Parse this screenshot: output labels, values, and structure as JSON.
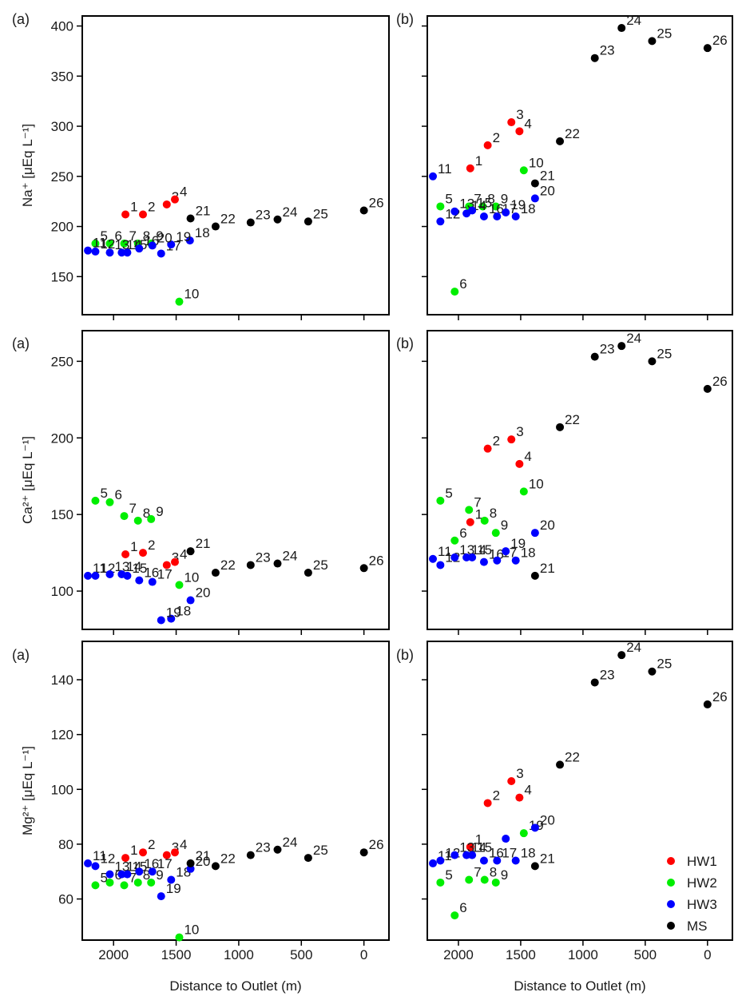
{
  "colors": {
    "HW1": "#ff0000",
    "HW2": "#00ee00",
    "HW3": "#0000ff",
    "MS": "#000000"
  },
  "legend": {
    "entries": [
      {
        "key": "HW1",
        "label": "HW1"
      },
      {
        "key": "HW2",
        "label": "HW2"
      },
      {
        "key": "HW3",
        "label": "HW3"
      },
      {
        "key": "MS",
        "label": "MS"
      }
    ],
    "placement": "bottom-right"
  },
  "x_axis": {
    "label": "Distance to Outlet (m)",
    "ticks": [
      2000,
      1500,
      1000,
      500,
      0
    ],
    "range": [
      2250,
      -200
    ]
  },
  "chart_data": [
    {
      "type": "scatter",
      "row": 0,
      "col": 0,
      "panel_tag": "(a)",
      "ylabel": "Na⁺ [μEq L⁻¹]",
      "ylim": [
        112,
        410
      ],
      "yticks": [
        150,
        200,
        250,
        300,
        350,
        400
      ],
      "points": [
        {
          "id": "1",
          "x": 1905,
          "y": 212,
          "g": "HW1"
        },
        {
          "id": "2",
          "x": 1765,
          "y": 212,
          "g": "HW1"
        },
        {
          "id": "3",
          "x": 1575,
          "y": 222,
          "g": "HW1"
        },
        {
          "id": "4",
          "x": 1510,
          "y": 227,
          "g": "HW1"
        },
        {
          "id": "5",
          "x": 2145,
          "y": 183,
          "g": "HW2"
        },
        {
          "id": "6",
          "x": 2030,
          "y": 183,
          "g": "HW2"
        },
        {
          "id": "7",
          "x": 1915,
          "y": 183,
          "g": "HW2"
        },
        {
          "id": "8",
          "x": 1805,
          "y": 183,
          "g": "HW2"
        },
        {
          "id": "9",
          "x": 1700,
          "y": 183,
          "g": "HW2"
        },
        {
          "id": "10",
          "x": 1475,
          "y": 125,
          "g": "HW2"
        },
        {
          "id": "11",
          "x": 2205,
          "y": 176,
          "g": "HW3"
        },
        {
          "id": "12",
          "x": 2145,
          "y": 175,
          "g": "HW3"
        },
        {
          "id": "13",
          "x": 2030,
          "y": 174,
          "g": "HW3"
        },
        {
          "id": "14",
          "x": 1935,
          "y": 174,
          "g": "HW3"
        },
        {
          "id": "15",
          "x": 1890,
          "y": 174,
          "g": "HW3"
        },
        {
          "id": "16",
          "x": 1795,
          "y": 178,
          "g": "HW3"
        },
        {
          "id": "17",
          "x": 1620,
          "y": 173,
          "g": "HW3"
        },
        {
          "id": "18",
          "x": 1390,
          "y": 186,
          "g": "HW3"
        },
        {
          "id": "19",
          "x": 1540,
          "y": 182,
          "g": "HW3"
        },
        {
          "id": "20",
          "x": 1690,
          "y": 181,
          "g": "HW3"
        },
        {
          "id": "21",
          "x": 1385,
          "y": 208,
          "g": "MS"
        },
        {
          "id": "22",
          "x": 1185,
          "y": 200,
          "g": "MS"
        },
        {
          "id": "23",
          "x": 905,
          "y": 204,
          "g": "MS"
        },
        {
          "id": "24",
          "x": 690,
          "y": 207,
          "g": "MS"
        },
        {
          "id": "25",
          "x": 445,
          "y": 205,
          "g": "MS"
        },
        {
          "id": "26",
          "x": 0,
          "y": 216,
          "g": "MS"
        }
      ]
    },
    {
      "type": "scatter",
      "row": 0,
      "col": 1,
      "panel_tag": "(b)",
      "ylabel": "",
      "ylim": [
        112,
        410
      ],
      "yticks": [
        150,
        200,
        250,
        300,
        350,
        400
      ],
      "points": [
        {
          "id": "1",
          "x": 1905,
          "y": 258,
          "g": "HW1"
        },
        {
          "id": "2",
          "x": 1765,
          "y": 281,
          "g": "HW1"
        },
        {
          "id": "3",
          "x": 1575,
          "y": 304,
          "g": "HW1"
        },
        {
          "id": "4",
          "x": 1510,
          "y": 295,
          "g": "HW1"
        },
        {
          "id": "5",
          "x": 2145,
          "y": 220,
          "g": "HW2"
        },
        {
          "id": "6",
          "x": 2030,
          "y": 135,
          "g": "HW2"
        },
        {
          "id": "7",
          "x": 1915,
          "y": 220,
          "g": "HW2"
        },
        {
          "id": "8",
          "x": 1805,
          "y": 220,
          "g": "HW2"
        },
        {
          "id": "9",
          "x": 1700,
          "y": 220,
          "g": "HW2"
        },
        {
          "id": "10",
          "x": 1475,
          "y": 256,
          "g": "HW2"
        },
        {
          "id": "11",
          "x": 2205,
          "y": 250,
          "g": "HW3"
        },
        {
          "id": "12",
          "x": 2145,
          "y": 205,
          "g": "HW3"
        },
        {
          "id": "13",
          "x": 2030,
          "y": 215,
          "g": "HW3"
        },
        {
          "id": "14",
          "x": 1935,
          "y": 213,
          "g": "HW3"
        },
        {
          "id": "15",
          "x": 1890,
          "y": 216,
          "g": "HW3"
        },
        {
          "id": "16",
          "x": 1795,
          "y": 210,
          "g": "HW3"
        },
        {
          "id": "17",
          "x": 1690,
          "y": 210,
          "g": "HW3"
        },
        {
          "id": "18",
          "x": 1540,
          "y": 210,
          "g": "HW3"
        },
        {
          "id": "19",
          "x": 1620,
          "y": 214,
          "g": "HW3"
        },
        {
          "id": "20",
          "x": 1385,
          "y": 228,
          "g": "HW3"
        },
        {
          "id": "21",
          "x": 1385,
          "y": 243,
          "g": "MS"
        },
        {
          "id": "22",
          "x": 1185,
          "y": 285,
          "g": "MS"
        },
        {
          "id": "23",
          "x": 905,
          "y": 368,
          "g": "MS"
        },
        {
          "id": "24",
          "x": 690,
          "y": 398,
          "g": "MS"
        },
        {
          "id": "25",
          "x": 445,
          "y": 385,
          "g": "MS"
        },
        {
          "id": "26",
          "x": 0,
          "y": 378,
          "g": "MS"
        }
      ]
    },
    {
      "type": "scatter",
      "row": 1,
      "col": 0,
      "panel_tag": "(a)",
      "ylabel": "Ca²⁺ [μEq L⁻¹]",
      "ylim": [
        75,
        270
      ],
      "yticks": [
        100,
        150,
        200,
        250
      ],
      "points": [
        {
          "id": "1",
          "x": 1905,
          "y": 124,
          "g": "HW1"
        },
        {
          "id": "2",
          "x": 1765,
          "y": 125,
          "g": "HW1"
        },
        {
          "id": "3",
          "x": 1575,
          "y": 117,
          "g": "HW1"
        },
        {
          "id": "4",
          "x": 1510,
          "y": 119,
          "g": "HW1"
        },
        {
          "id": "5",
          "x": 2145,
          "y": 159,
          "g": "HW2"
        },
        {
          "id": "6",
          "x": 2030,
          "y": 158,
          "g": "HW2"
        },
        {
          "id": "7",
          "x": 1915,
          "y": 149,
          "g": "HW2"
        },
        {
          "id": "8",
          "x": 1805,
          "y": 146,
          "g": "HW2"
        },
        {
          "id": "9",
          "x": 1700,
          "y": 147,
          "g": "HW2"
        },
        {
          "id": "10",
          "x": 1475,
          "y": 104,
          "g": "HW2"
        },
        {
          "id": "11",
          "x": 2205,
          "y": 110,
          "g": "HW3"
        },
        {
          "id": "12",
          "x": 2145,
          "y": 110,
          "g": "HW3"
        },
        {
          "id": "13",
          "x": 2030,
          "y": 111,
          "g": "HW3"
        },
        {
          "id": "14",
          "x": 1935,
          "y": 111,
          "g": "HW3"
        },
        {
          "id": "15",
          "x": 1890,
          "y": 110,
          "g": "HW3"
        },
        {
          "id": "16",
          "x": 1795,
          "y": 107,
          "g": "HW3"
        },
        {
          "id": "17",
          "x": 1690,
          "y": 106,
          "g": "HW3"
        },
        {
          "id": "18",
          "x": 1540,
          "y": 82,
          "g": "HW3"
        },
        {
          "id": "19",
          "x": 1620,
          "y": 81,
          "g": "HW3"
        },
        {
          "id": "20",
          "x": 1385,
          "y": 94,
          "g": "HW3"
        },
        {
          "id": "21",
          "x": 1385,
          "y": 126,
          "g": "MS"
        },
        {
          "id": "22",
          "x": 1185,
          "y": 112,
          "g": "MS"
        },
        {
          "id": "23",
          "x": 905,
          "y": 117,
          "g": "MS"
        },
        {
          "id": "24",
          "x": 690,
          "y": 118,
          "g": "MS"
        },
        {
          "id": "25",
          "x": 445,
          "y": 112,
          "g": "MS"
        },
        {
          "id": "26",
          "x": 0,
          "y": 115,
          "g": "MS"
        }
      ]
    },
    {
      "type": "scatter",
      "row": 1,
      "col": 1,
      "panel_tag": "(b)",
      "ylabel": "",
      "ylim": [
        75,
        270
      ],
      "yticks": [
        100,
        150,
        200,
        250
      ],
      "points": [
        {
          "id": "1",
          "x": 1905,
          "y": 145,
          "g": "HW1"
        },
        {
          "id": "2",
          "x": 1765,
          "y": 193,
          "g": "HW1"
        },
        {
          "id": "3",
          "x": 1575,
          "y": 199,
          "g": "HW1"
        },
        {
          "id": "4",
          "x": 1510,
          "y": 183,
          "g": "HW1"
        },
        {
          "id": "5",
          "x": 2145,
          "y": 159,
          "g": "HW2"
        },
        {
          "id": "6",
          "x": 2030,
          "y": 133,
          "g": "HW2"
        },
        {
          "id": "7",
          "x": 1915,
          "y": 153,
          "g": "HW2"
        },
        {
          "id": "8",
          "x": 1790,
          "y": 146,
          "g": "HW2"
        },
        {
          "id": "9",
          "x": 1700,
          "y": 138,
          "g": "HW2"
        },
        {
          "id": "10",
          "x": 1475,
          "y": 165,
          "g": "HW2"
        },
        {
          "id": "11",
          "x": 2205,
          "y": 121,
          "g": "HW3"
        },
        {
          "id": "12",
          "x": 2145,
          "y": 117,
          "g": "HW3"
        },
        {
          "id": "13",
          "x": 2030,
          "y": 122,
          "g": "HW3"
        },
        {
          "id": "14",
          "x": 1935,
          "y": 122,
          "g": "HW3"
        },
        {
          "id": "15",
          "x": 1890,
          "y": 122,
          "g": "HW3"
        },
        {
          "id": "16",
          "x": 1795,
          "y": 119,
          "g": "HW3"
        },
        {
          "id": "17",
          "x": 1690,
          "y": 120,
          "g": "HW3"
        },
        {
          "id": "18",
          "x": 1540,
          "y": 120,
          "g": "HW3"
        },
        {
          "id": "19",
          "x": 1620,
          "y": 126,
          "g": "HW3"
        },
        {
          "id": "20",
          "x": 1385,
          "y": 138,
          "g": "HW3"
        },
        {
          "id": "21",
          "x": 1385,
          "y": 110,
          "g": "MS"
        },
        {
          "id": "22",
          "x": 1185,
          "y": 207,
          "g": "MS"
        },
        {
          "id": "23",
          "x": 905,
          "y": 253,
          "g": "MS"
        },
        {
          "id": "24",
          "x": 690,
          "y": 260,
          "g": "MS"
        },
        {
          "id": "25",
          "x": 445,
          "y": 250,
          "g": "MS"
        },
        {
          "id": "26",
          "x": 0,
          "y": 232,
          "g": "MS"
        }
      ]
    },
    {
      "type": "scatter",
      "row": 2,
      "col": 0,
      "panel_tag": "(a)",
      "ylabel": "Mg²⁺ [μEq L⁻¹]",
      "ylim": [
        45,
        154
      ],
      "yticks": [
        60,
        80,
        100,
        120,
        140
      ],
      "points": [
        {
          "id": "1",
          "x": 1905,
          "y": 75,
          "g": "HW1"
        },
        {
          "id": "2",
          "x": 1765,
          "y": 77,
          "g": "HW1"
        },
        {
          "id": "3",
          "x": 1575,
          "y": 76,
          "g": "HW1"
        },
        {
          "id": "4",
          "x": 1510,
          "y": 77,
          "g": "HW1"
        },
        {
          "id": "5",
          "x": 2145,
          "y": 65,
          "g": "HW2"
        },
        {
          "id": "6",
          "x": 2030,
          "y": 66,
          "g": "HW2"
        },
        {
          "id": "7",
          "x": 1915,
          "y": 65,
          "g": "HW2"
        },
        {
          "id": "8",
          "x": 1805,
          "y": 66,
          "g": "HW2"
        },
        {
          "id": "9",
          "x": 1700,
          "y": 66,
          "g": "HW2"
        },
        {
          "id": "10",
          "x": 1475,
          "y": 46,
          "g": "HW2"
        },
        {
          "id": "11",
          "x": 2205,
          "y": 73,
          "g": "HW3"
        },
        {
          "id": "12",
          "x": 2145,
          "y": 72,
          "g": "HW3"
        },
        {
          "id": "13",
          "x": 2030,
          "y": 69,
          "g": "HW3"
        },
        {
          "id": "14",
          "x": 1935,
          "y": 69,
          "g": "HW3"
        },
        {
          "id": "15",
          "x": 1890,
          "y": 69,
          "g": "HW3"
        },
        {
          "id": "16",
          "x": 1795,
          "y": 70,
          "g": "HW3"
        },
        {
          "id": "17",
          "x": 1690,
          "y": 70,
          "g": "HW3"
        },
        {
          "id": "18",
          "x": 1540,
          "y": 67,
          "g": "HW3"
        },
        {
          "id": "19",
          "x": 1620,
          "y": 61,
          "g": "HW3"
        },
        {
          "id": "20",
          "x": 1385,
          "y": 71,
          "g": "HW3"
        },
        {
          "id": "21",
          "x": 1385,
          "y": 73,
          "g": "MS"
        },
        {
          "id": "22",
          "x": 1185,
          "y": 72,
          "g": "MS"
        },
        {
          "id": "23",
          "x": 905,
          "y": 76,
          "g": "MS"
        },
        {
          "id": "24",
          "x": 690,
          "y": 78,
          "g": "MS"
        },
        {
          "id": "25",
          "x": 445,
          "y": 75,
          "g": "MS"
        },
        {
          "id": "26",
          "x": 0,
          "y": 77,
          "g": "MS"
        }
      ]
    },
    {
      "type": "scatter",
      "row": 2,
      "col": 1,
      "panel_tag": "(b)",
      "ylabel": "",
      "ylim": [
        45,
        154
      ],
      "yticks": [
        60,
        80,
        100,
        120,
        140
      ],
      "points": [
        {
          "id": "1",
          "x": 1905,
          "y": 79,
          "g": "HW1"
        },
        {
          "id": "2",
          "x": 1765,
          "y": 95,
          "g": "HW1"
        },
        {
          "id": "3",
          "x": 1575,
          "y": 103,
          "g": "HW1"
        },
        {
          "id": "4",
          "x": 1510,
          "y": 97,
          "g": "HW1"
        },
        {
          "id": "5",
          "x": 2145,
          "y": 66,
          "g": "HW2"
        },
        {
          "id": "6",
          "x": 2030,
          "y": 54,
          "g": "HW2"
        },
        {
          "id": "7",
          "x": 1915,
          "y": 67,
          "g": "HW2"
        },
        {
          "id": "8",
          "x": 1790,
          "y": 67,
          "g": "HW2"
        },
        {
          "id": "9",
          "x": 1700,
          "y": 66,
          "g": "HW2"
        },
        {
          "id": "19",
          "x": 1475,
          "y": 84,
          "g": "HW2"
        },
        {
          "id": "11",
          "x": 2205,
          "y": 73,
          "g": "HW3"
        },
        {
          "id": "12",
          "x": 2145,
          "y": 74,
          "g": "HW3"
        },
        {
          "id": "13",
          "x": 2030,
          "y": 76,
          "g": "HW3"
        },
        {
          "id": "14",
          "x": 1935,
          "y": 76,
          "g": "HW3"
        },
        {
          "id": "15",
          "x": 1890,
          "y": 76,
          "g": "HW3"
        },
        {
          "id": "16",
          "x": 1795,
          "y": 74,
          "g": "HW3"
        },
        {
          "id": "17",
          "x": 1690,
          "y": 74,
          "g": "HW3"
        },
        {
          "id": "18",
          "x": 1540,
          "y": 74,
          "g": "HW3"
        },
        {
          "id": "",
          "x": 1620,
          "y": 82,
          "g": "HW3"
        },
        {
          "id": "20",
          "x": 1385,
          "y": 86,
          "g": "HW3"
        },
        {
          "id": "21",
          "x": 1385,
          "y": 72,
          "g": "MS"
        },
        {
          "id": "22",
          "x": 1185,
          "y": 109,
          "g": "MS"
        },
        {
          "id": "23",
          "x": 905,
          "y": 139,
          "g": "MS"
        },
        {
          "id": "24",
          "x": 690,
          "y": 149,
          "g": "MS"
        },
        {
          "id": "25",
          "x": 445,
          "y": 143,
          "g": "MS"
        },
        {
          "id": "26",
          "x": 0,
          "y": 131,
          "g": "MS"
        }
      ]
    }
  ]
}
